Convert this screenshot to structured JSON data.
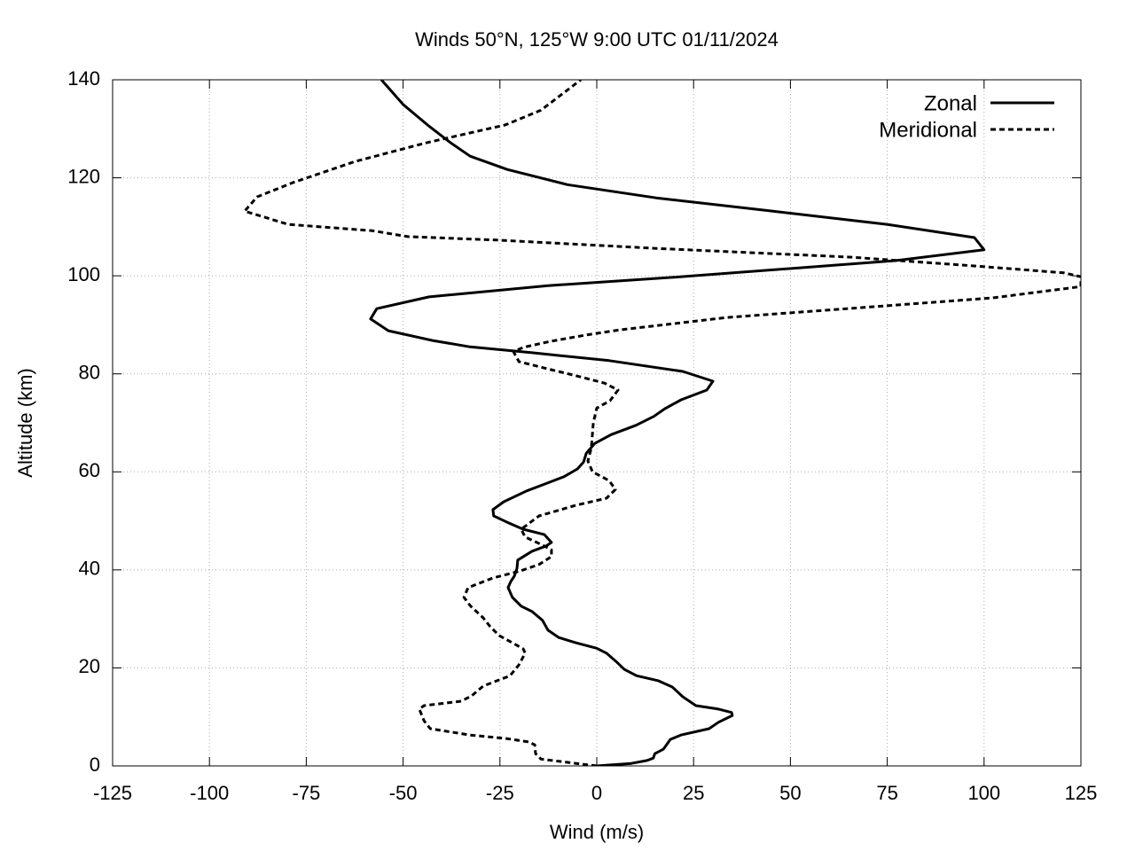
{
  "chart_data": {
    "type": "line",
    "title": "Winds 50°N, 125°W 9:00 UTC 01/11/2024",
    "x_label": "Wind (m/s)",
    "y_label": "Altitude (km)",
    "xlim": [
      -125,
      125
    ],
    "ylim": [
      0,
      140
    ],
    "xticks": [
      -125,
      -100,
      -75,
      -50,
      -25,
      0,
      25,
      50,
      75,
      100,
      125
    ],
    "yticks": [
      0,
      20,
      40,
      60,
      80,
      100,
      120,
      140
    ],
    "grid": true,
    "legend": "top-right",
    "series": [
      {
        "name": "Zonal",
        "color": "#000000",
        "style": "solid",
        "x": [
          0,
          8.9,
          13,
          14.6,
          15,
          17.2,
          19,
          21.7,
          29,
          31.4,
          35,
          34.8,
          31.4,
          25.6,
          22.2,
          19.5,
          15.8,
          10.3,
          7.1,
          5,
          2.5,
          0,
          -5.3,
          -9.8,
          -12.6,
          -14,
          -16.7,
          -19.5,
          -21.8,
          -22.9,
          -22.2,
          -21.3,
          -20.6,
          -20.4,
          -16.7,
          -13,
          -11.7,
          -13.5,
          -19,
          -23.1,
          -26.6,
          -26.8,
          -24,
          -18.1,
          -12.8,
          -8.5,
          -5,
          -3.4,
          -2.7,
          -0.5,
          3.7,
          10.1,
          14.7,
          17.6,
          21.8,
          28.4,
          30,
          22.2,
          3.2,
          -16.7,
          -32.7,
          -42.4,
          -53.8,
          -58.4,
          -56.8,
          -43.3,
          -12.6,
          19.9,
          77.1,
          100,
          97.5,
          74.9,
          43.3,
          15.3,
          -7.6,
          -23.1,
          -32.7,
          -38,
          -43.7,
          -49.9,
          -55.6
        ],
        "y": [
          0,
          0.5,
          1.1,
          1.6,
          2.5,
          3.4,
          5.4,
          6.3,
          7.6,
          8.9,
          10.3,
          10.9,
          11.6,
          12.3,
          14.1,
          16.1,
          17.4,
          18.4,
          19.7,
          21.3,
          23,
          24,
          25.1,
          26.2,
          27.7,
          29.7,
          31.5,
          32.6,
          34.4,
          36.4,
          37.6,
          38.7,
          40.3,
          42,
          43.8,
          44.9,
          45.6,
          47.2,
          48.3,
          49.7,
          51,
          52.3,
          53.9,
          56.1,
          57.7,
          59,
          60.6,
          62,
          63.8,
          65.8,
          67.6,
          69.5,
          71.3,
          72.9,
          74.7,
          76.7,
          78.5,
          80.5,
          82.7,
          84.3,
          85.5,
          86.8,
          88.8,
          91.2,
          93.3,
          95.7,
          98,
          99.7,
          103.1,
          105.3,
          107.8,
          110.5,
          113.4,
          115.9,
          118.6,
          121.7,
          124.4,
          127.3,
          130.8,
          134.9,
          140
        ]
      },
      {
        "name": "Meridional",
        "color": "#000000",
        "style": "dashed",
        "x": [
          0,
          -5.3,
          -14.4,
          -15.8,
          -16,
          -17.6,
          -23.6,
          -32.7,
          -43,
          -44.6,
          -45.8,
          -44.6,
          -35,
          -32.3,
          -29.3,
          -22.4,
          -20.1,
          -18.5,
          -19,
          -25.2,
          -27.5,
          -29.3,
          -32.7,
          -34.3,
          -33.2,
          -27,
          -19.7,
          -14.9,
          -11.7,
          -11.7,
          -14.4,
          -18.5,
          -19.5,
          -14.9,
          -5.3,
          2.5,
          4.8,
          3.2,
          -1.1,
          -2.3,
          -1.4,
          -0.9,
          0,
          3.4,
          5.5,
          2,
          -5.3,
          -12.6,
          -20.1,
          -21.5,
          -19,
          -12.1,
          -2.9,
          6.2,
          33.7,
          74.9,
          102.3,
          125,
          125,
          120.6,
          97.8,
          65.7,
          15.3,
          -25.9,
          -48.8,
          -57.9,
          -79.7,
          -90.9,
          -87.7,
          -78.5,
          -62.5,
          -44.2,
          -23.6,
          -14.4,
          -4.1
        ],
        "y": [
          0,
          0.5,
          1.4,
          2.5,
          4.3,
          4.9,
          5.6,
          6.3,
          7.6,
          9.2,
          11.6,
          12.3,
          13.2,
          14.3,
          16.3,
          18.4,
          20.6,
          23,
          23.9,
          26.6,
          28.4,
          30.2,
          32.7,
          34.4,
          36.4,
          38.3,
          39.8,
          41.1,
          42.7,
          44.1,
          45.2,
          46.7,
          48.3,
          51,
          53.2,
          54.6,
          56.4,
          58.2,
          60,
          62.2,
          64.9,
          70,
          73,
          74.5,
          76.7,
          78.1,
          79.6,
          81,
          82.5,
          84.5,
          85.4,
          86.6,
          87.9,
          89,
          91.5,
          93.9,
          95.5,
          97.8,
          99.8,
          100.6,
          102,
          103.8,
          105.6,
          107.3,
          108,
          109.2,
          110.5,
          113.2,
          116.1,
          119,
          123.3,
          127.1,
          130.8,
          133.8,
          140
        ]
      }
    ]
  }
}
